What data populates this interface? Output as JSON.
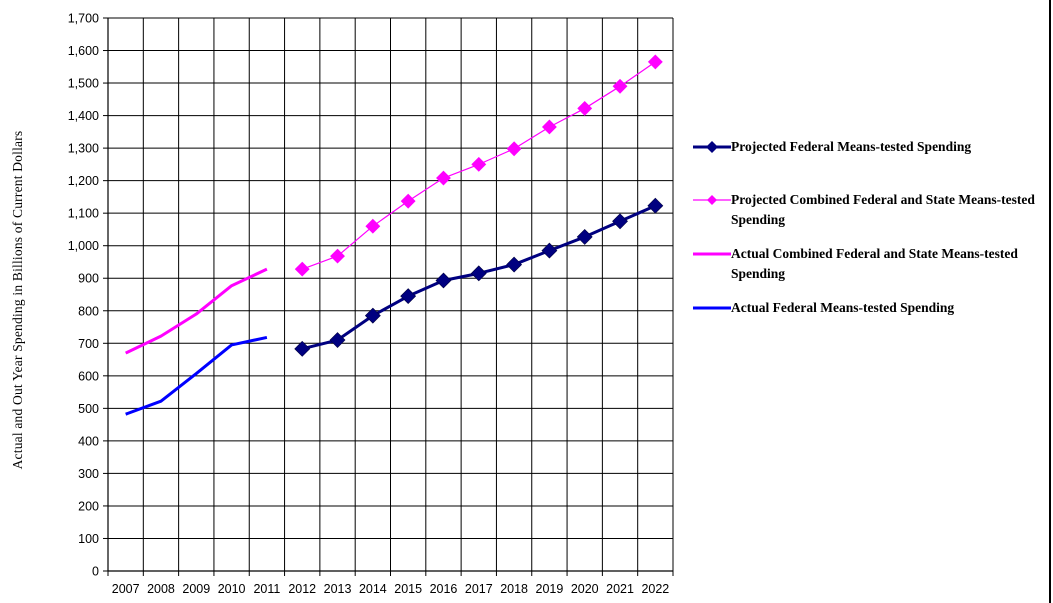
{
  "chart_data": {
    "type": "line",
    "ylabel": "Actual and Out Year Spending in Billions of Current Dollars",
    "xlabel": "",
    "ylim": [
      0,
      1700
    ],
    "ytick_step": 100,
    "ytick_labels": [
      "0",
      "100",
      "200",
      "300",
      "400",
      "500",
      "600",
      "700",
      "800",
      "900",
      "1,000",
      "1,100",
      "1,200",
      "1,300",
      "1,400",
      "1,500",
      "1,600",
      "1,700"
    ],
    "categories": [
      "2007",
      "2008",
      "2009",
      "2010",
      "2011",
      "2012",
      "2013",
      "2014",
      "2015",
      "2016",
      "2017",
      "2018",
      "2019",
      "2020",
      "2021",
      "2022"
    ],
    "grid": true,
    "legend_position": "right",
    "series": [
      {
        "name": "Projected Federal Means-tested Spending",
        "color": "#000080",
        "marker": "diamond",
        "x": [
          "2012",
          "2013",
          "2014",
          "2015",
          "2016",
          "2017",
          "2018",
          "2019",
          "2020",
          "2021",
          "2022"
        ],
        "values": [
          683,
          710,
          785,
          845,
          893,
          915,
          942,
          985,
          1027,
          1075,
          1123
        ]
      },
      {
        "name": "Projected Combined Federal and State Means-tested Spending",
        "color": "#ff00ff",
        "marker": "diamond",
        "x": [
          "2012",
          "2013",
          "2014",
          "2015",
          "2016",
          "2017",
          "2018",
          "2019",
          "2020",
          "2021",
          "2022"
        ],
        "values": [
          928,
          968,
          1060,
          1137,
          1208,
          1250,
          1298,
          1365,
          1422,
          1490,
          1565
        ]
      },
      {
        "name": "Actual Combined Federal and State Means-tested Spending",
        "color": "#ff00ff",
        "marker": "none",
        "x": [
          "2007",
          "2008",
          "2009",
          "2010",
          "2011"
        ],
        "values": [
          670,
          722,
          790,
          877,
          928
        ]
      },
      {
        "name": "Actual Federal Means-tested Spending",
        "color": "#0000ff",
        "marker": "none",
        "x": [
          "2007",
          "2008",
          "2009",
          "2010",
          "2011"
        ],
        "values": [
          482,
          522,
          607,
          695,
          718
        ]
      }
    ]
  }
}
